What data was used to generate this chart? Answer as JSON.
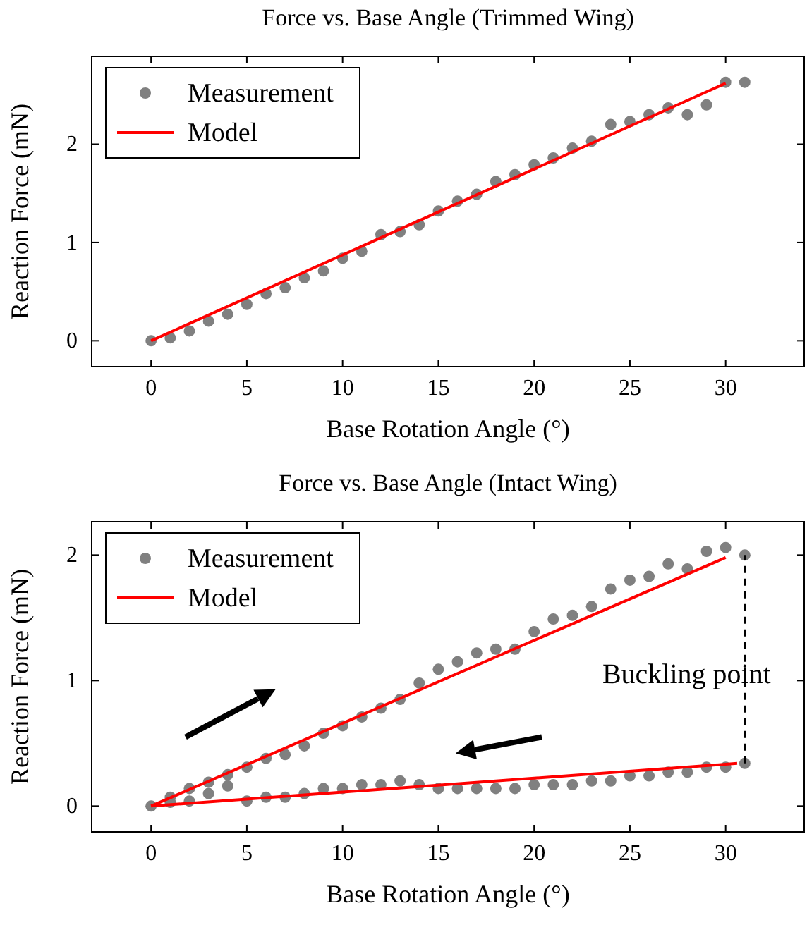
{
  "chart_data": [
    {
      "type": "scatter",
      "title": "Force vs. Base Angle (Trimmed Wing)",
      "xlabel": "Base Rotation Angle (°)",
      "ylabel": "Reaction Force (mN)",
      "xlim": [
        -3.1,
        34.1
      ],
      "ylim": [
        -0.263,
        2.893
      ],
      "xticks": [
        0,
        5,
        10,
        15,
        20,
        25,
        30
      ],
      "yticks": [
        0,
        1,
        2
      ],
      "legend": "top left",
      "series": [
        {
          "name": "Measurement",
          "marker": "circle",
          "color": "#808080",
          "x": [
            0,
            1,
            2,
            3,
            4,
            5,
            6,
            7,
            8,
            9,
            10,
            11,
            12,
            13,
            14,
            15,
            16,
            17,
            18,
            19,
            20,
            21,
            22,
            23,
            24,
            25,
            26,
            27,
            28,
            29,
            30,
            31
          ],
          "values": [
            0,
            0.03,
            0.1,
            0.2,
            0.27,
            0.37,
            0.48,
            0.54,
            0.64,
            0.71,
            0.84,
            0.91,
            1.08,
            1.11,
            1.18,
            1.32,
            1.42,
            1.49,
            1.62,
            1.69,
            1.79,
            1.86,
            1.96,
            2.03,
            2.2,
            2.23,
            2.3,
            2.37,
            2.3,
            2.4,
            2.63,
            2.63
          ]
        },
        {
          "name": "Model",
          "type": "line",
          "line_style": "solid",
          "color": "#ff0000",
          "x": [
            0,
            30
          ],
          "values": [
            0,
            2.62
          ]
        }
      ]
    },
    {
      "type": "scatter",
      "title": "Force vs. Base Angle (Intact Wing)",
      "xlabel": "Base Rotation Angle (°)",
      "ylabel": "Reaction Force (mN)",
      "xlim": [
        -3.1,
        34.1
      ],
      "ylim": [
        -0.206,
        2.266
      ],
      "xticks": [
        0,
        5,
        10,
        15,
        20,
        25,
        30
      ],
      "yticks": [
        0,
        1,
        2
      ],
      "legend": "top left",
      "annotations": [
        "Buckling point"
      ],
      "series": [
        {
          "name": "Measurement",
          "marker": "circle",
          "color": "#808080",
          "x": [
            0,
            1,
            2,
            3,
            4,
            5,
            6,
            7,
            8,
            9,
            10,
            11,
            12,
            13,
            14,
            15,
            16,
            17,
            18,
            19,
            20,
            21,
            22,
            23,
            24,
            25,
            26,
            27,
            28,
            29,
            30,
            31,
            1,
            2,
            3,
            4,
            5,
            6,
            7,
            8,
            9,
            10,
            11,
            12,
            13,
            14,
            15,
            16,
            17,
            18,
            19,
            20,
            21,
            22,
            23,
            24,
            25,
            26,
            27,
            28,
            29,
            30,
            31
          ],
          "values": [
            0,
            0.07,
            0.14,
            0.19,
            0.25,
            0.31,
            0.38,
            0.41,
            0.48,
            0.58,
            0.64,
            0.71,
            0.78,
            0.85,
            0.98,
            1.09,
            1.15,
            1.22,
            1.25,
            1.25,
            1.39,
            1.49,
            1.52,
            1.59,
            1.73,
            1.8,
            1.83,
            1.93,
            1.89,
            2.03,
            2.06,
            2.0,
            0.03,
            0.04,
            0.1,
            0.16,
            0.04,
            0.07,
            0.07,
            0.1,
            0.14,
            0.14,
            0.17,
            0.17,
            0.2,
            0.17,
            0.14,
            0.14,
            0.14,
            0.14,
            0.14,
            0.17,
            0.17,
            0.17,
            0.2,
            0.2,
            0.24,
            0.24,
            0.27,
            0.27,
            0.31,
            0.31,
            0.34
          ]
        },
        {
          "name": "Model",
          "type": "line",
          "line_style": "solid",
          "color": "#ff0000",
          "x": [
            0,
            30
          ],
          "values": [
            0,
            1.98
          ]
        },
        {
          "type": "line",
          "line_style": "solid",
          "color": "#ff0000",
          "x": [
            0,
            30.6
          ],
          "values": [
            0,
            0.34
          ]
        },
        {
          "type": "line",
          "line_style": "dashed",
          "color": "#000000",
          "x": [
            31,
            31
          ],
          "values": [
            0.34,
            2.0
          ]
        }
      ]
    }
  ]
}
